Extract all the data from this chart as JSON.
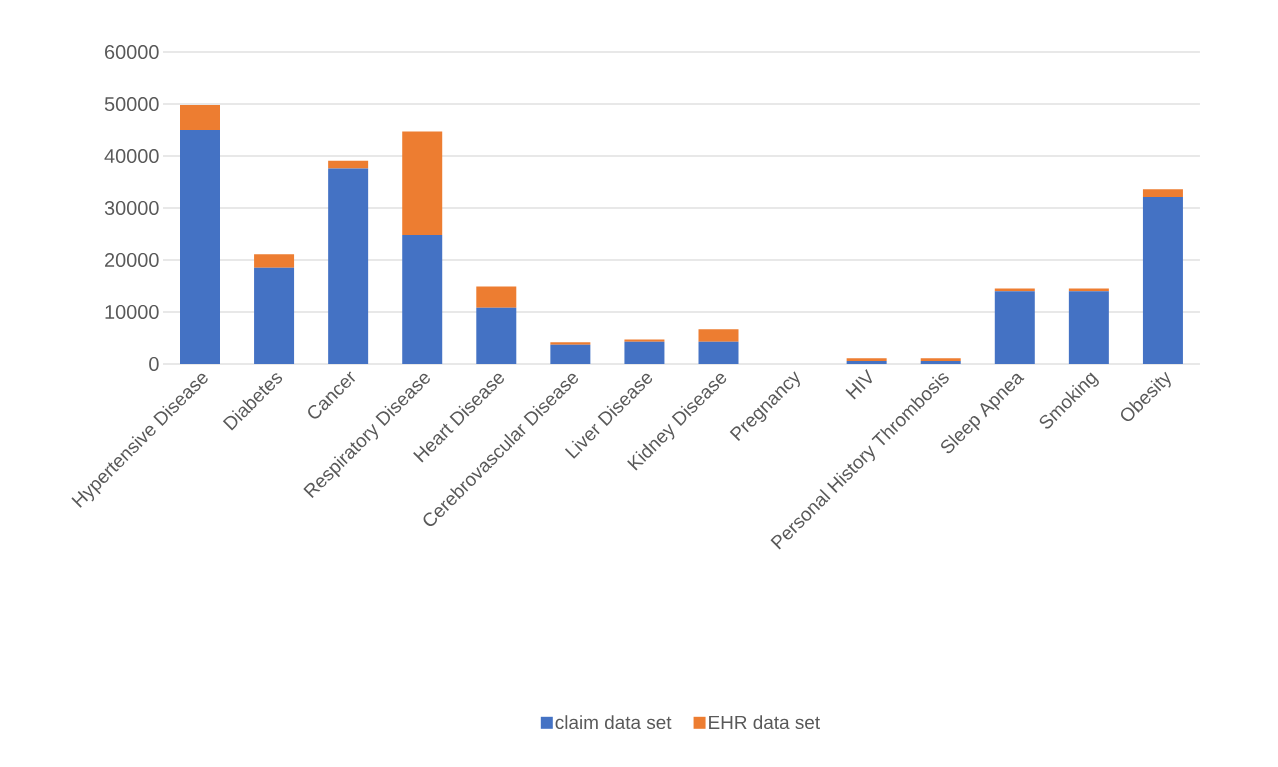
{
  "chart_data": {
    "type": "bar",
    "stacked": true,
    "categories": [
      "Hypertensive Disease",
      "Diabetes",
      "Cancer",
      "Respiratory Disease",
      "Heart Disease",
      "Cerebrovascular Disease",
      "Liver Disease",
      "Kidney Disease",
      "Pregnancy",
      "HIV",
      "Personal History Thrombosis",
      "Sleep Apnea",
      "Smoking",
      "Obesity"
    ],
    "series": [
      {
        "name": "claim data set",
        "color": "#4472c4",
        "values": [
          45000,
          18500,
          37600,
          24800,
          10800,
          3700,
          4300,
          4300,
          0,
          600,
          600,
          14000,
          14000,
          32100
        ]
      },
      {
        "name": "EHR data set",
        "color": "#ed7d31",
        "values": [
          4800,
          2600,
          1500,
          19900,
          4100,
          500,
          400,
          2400,
          0,
          500,
          500,
          500,
          500,
          1500
        ]
      }
    ],
    "ylim": [
      0,
      60000
    ],
    "yticks": [
      0,
      10000,
      20000,
      30000,
      40000,
      50000,
      60000
    ],
    "grid": "y",
    "legend": "bottom"
  }
}
